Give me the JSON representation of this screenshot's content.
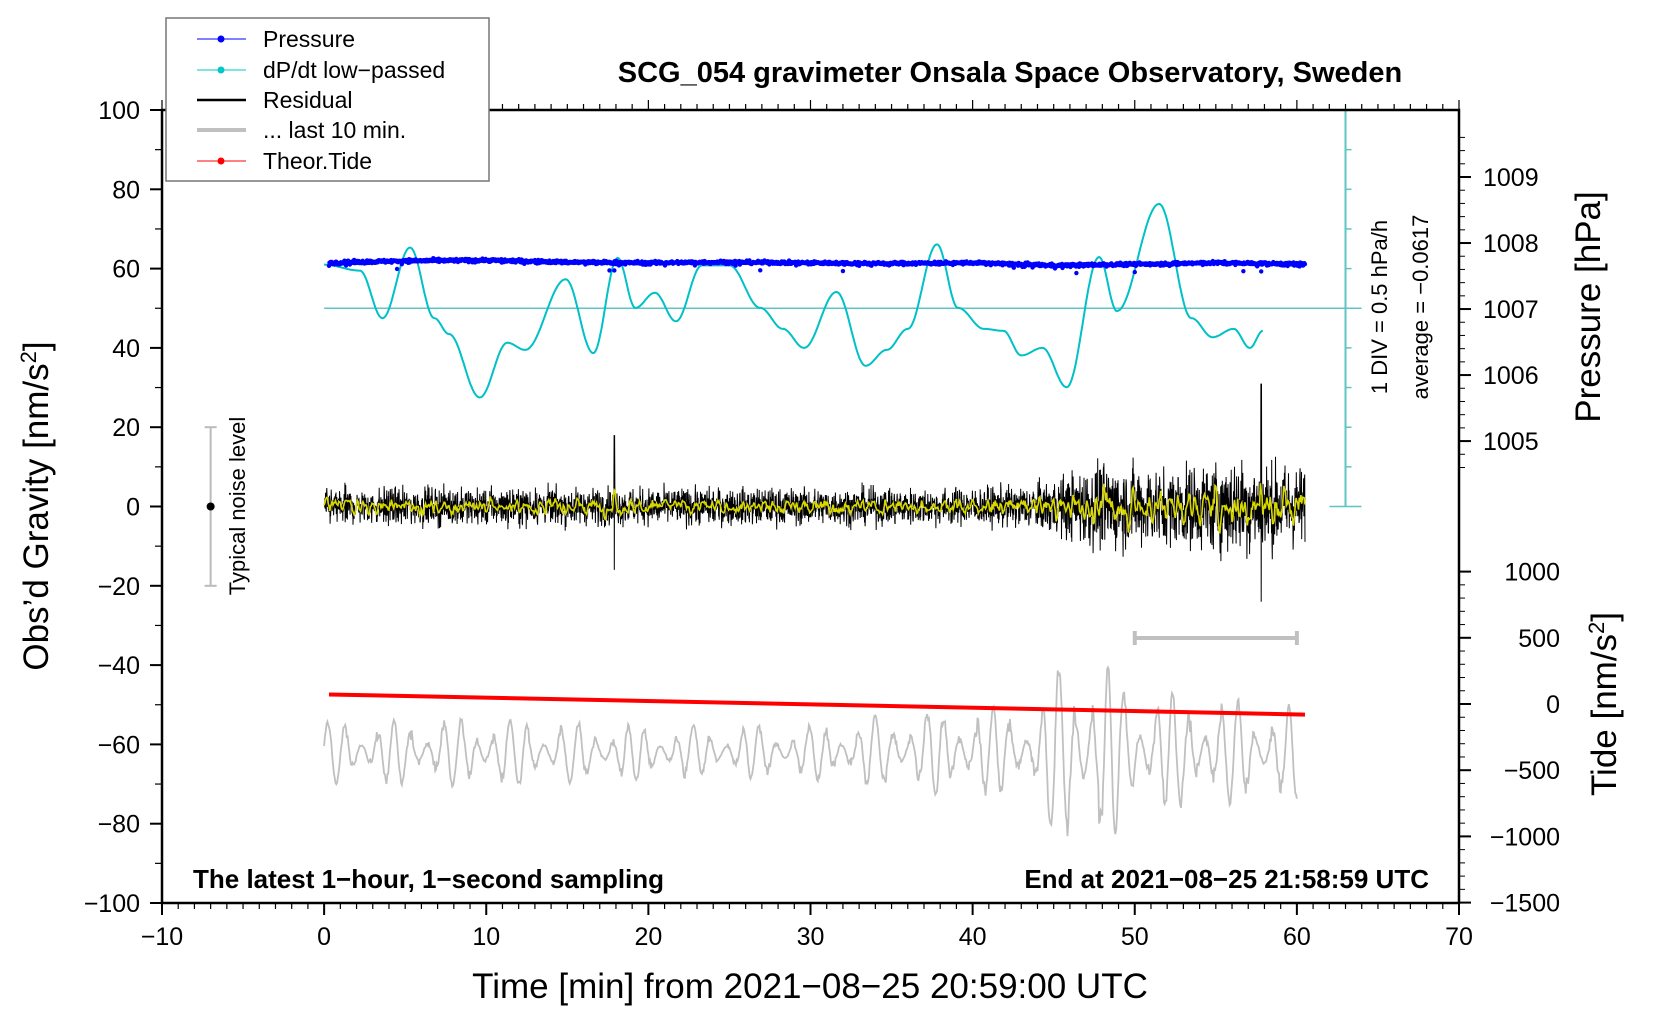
{
  "chart_data": {
    "type": "line",
    "title": "SCG_054 gravimeter Onsala Space Observatory, Sweden",
    "xlabel": "Time [min] from 2021−08−25 20:59:00 UTC",
    "ylabel_left": "Obs’d Gravity [nm/s",
    "ylabel_left_sup": "2",
    "ylabel_left_end": "]",
    "ylabel_right_pressure": "Pressure [hPa]",
    "ylabel_right_tide": "Tide [nm/s",
    "ylabel_right_tide_sup": "2",
    "ylabel_right_tide_end": "]",
    "xlim": [
      -10,
      70
    ],
    "ylim": [
      -100,
      100
    ],
    "x_ticks": [
      "−10",
      "0",
      "10",
      "20",
      "30",
      "40",
      "50",
      "60",
      "70"
    ],
    "x_tick_values": [
      -10,
      0,
      10,
      20,
      30,
      40,
      50,
      60,
      70
    ],
    "y_ticks": [
      "100",
      "80",
      "60",
      "40",
      "20",
      "0",
      "−20",
      "−40",
      "−60",
      "−80",
      "−100"
    ],
    "y_tick_values": [
      100,
      80,
      60,
      40,
      20,
      0,
      -20,
      -40,
      -60,
      -80,
      -100
    ],
    "pressure_ticks": [
      "1009",
      "1008",
      "1007",
      "1006",
      "1005"
    ],
    "pressure_tick_values": [
      1009,
      1008,
      1007,
      1006,
      1005
    ],
    "tide_ticks": [
      "1000",
      "500",
      "0",
      "−500",
      "−1000",
      "−1500"
    ],
    "tide_tick_values": [
      1000,
      500,
      0,
      -500,
      -1000,
      -1500
    ],
    "legend": {
      "placement": "top-left",
      "entries": [
        {
          "label": "Pressure",
          "color": "#0000ff",
          "style": "dot-line"
        },
        {
          "label": "dP/dt low−passed",
          "color": "#00c8c8",
          "style": "dot-line"
        },
        {
          "label": "Residual",
          "color": "#000000",
          "style": "line"
        },
        {
          "label": "... last 10 min.",
          "color": "#c0c0c0",
          "style": "thick-line"
        },
        {
          "label": "Theor.Tide",
          "color": "#ff0000",
          "style": "dot-line"
        }
      ]
    },
    "annotations": {
      "bottom_left": "The latest 1−hour, 1−second sampling",
      "bottom_right": "End at 2021−08−25 21:58:59 UTC",
      "dpdt_scale": "1 DIV = 0.5 hPa/h",
      "dpdt_average": "average = −0.0617",
      "noise_label": "Typical noise level"
    },
    "noise_level": {
      "x": -7,
      "center": 0,
      "range": [
        -20,
        20
      ]
    },
    "last10_range_minutes": [
      50,
      60
    ],
    "dpdt_scale_axis": {
      "x": 63,
      "top_gravity": 100,
      "bottom_gravity": 0,
      "div_gravity": 10,
      "average_gravity": 50
    },
    "series": [
      {
        "name": "Pressure",
        "unit": "hPa",
        "color": "#0000ff",
        "x": [
          0.3,
          5,
          10,
          15,
          20,
          25,
          30,
          35,
          40,
          45,
          50,
          55,
          60.5
        ],
        "values": [
          1007.7,
          1007.73,
          1007.74,
          1007.71,
          1007.7,
          1007.71,
          1007.7,
          1007.69,
          1007.7,
          1007.66,
          1007.68,
          1007.7,
          1007.68
        ],
        "dips_minutes": [
          4.5,
          17.6,
          17.9,
          26.9,
          32.0,
          46.4,
          50.0,
          56.7,
          57.8
        ]
      },
      {
        "name": "dP/dt low-passed",
        "unit": "gravity-axis units (10 = 0.5 hPa/h, 50 = average)",
        "color": "#00c0c8",
        "x": [
          0,
          2.2,
          3.6,
          5.3,
          6.8,
          7.7,
          9.6,
          11.3,
          12.4,
          14.9,
          16.6,
          18.1,
          19.2,
          20.4,
          21.7,
          23.3,
          25.0,
          26.9,
          28.3,
          29.6,
          31.6,
          33.4,
          34.7,
          36.0,
          37.8,
          39.1,
          40.7,
          41.9,
          43.0,
          44.3,
          45.8,
          47.8,
          48.9,
          51.5,
          53.5,
          54.8,
          56.1,
          57.1,
          57.9
        ],
        "values": [
          61,
          59.5,
          47.5,
          65.3,
          47.5,
          43.5,
          27.5,
          41.3,
          39.5,
          57.3,
          38.7,
          62.7,
          50.1,
          53.9,
          46.7,
          60.8,
          60.8,
          50.1,
          44.8,
          40,
          54.1,
          35.5,
          39.5,
          44.8,
          66.1,
          50.1,
          44.8,
          44.3,
          38.1,
          40,
          30.1,
          62.9,
          49.3,
          76.3,
          47.5,
          42.7,
          44.8,
          40,
          44.3
        ]
      },
      {
        "name": "Residual",
        "unit": "nm/s2",
        "color": "#000000",
        "envelope_x": [
          0,
          10,
          20,
          30,
          40,
          44,
          48,
          52,
          56,
          60
        ],
        "envelope_amplitude": [
          5,
          5,
          5,
          5,
          5,
          6,
          12,
          10,
          13,
          11
        ],
        "spikes": [
          {
            "x": 17.9,
            "max": 18,
            "min": -16
          },
          {
            "x": 57.8,
            "max": 31,
            "min": -24
          }
        ],
        "smoothed_color": "#d8d800"
      },
      {
        "name": "... last 10 min.",
        "unit": "nm/s2 (offset)",
        "color": "#c0c0c0",
        "center": -62,
        "envelope_x": [
          0,
          10,
          20,
          30,
          35,
          40,
          44,
          46,
          47,
          50,
          55,
          60
        ],
        "envelope_amplitude": [
          8,
          9,
          7,
          7,
          10,
          12,
          12,
          30,
          28,
          16,
          14,
          12
        ]
      },
      {
        "name": "Theor.Tide",
        "unit": "nm/s2",
        "color": "#ff0000",
        "x": [
          0.3,
          60.5
        ],
        "values": [
          72,
          -80
        ]
      }
    ]
  }
}
